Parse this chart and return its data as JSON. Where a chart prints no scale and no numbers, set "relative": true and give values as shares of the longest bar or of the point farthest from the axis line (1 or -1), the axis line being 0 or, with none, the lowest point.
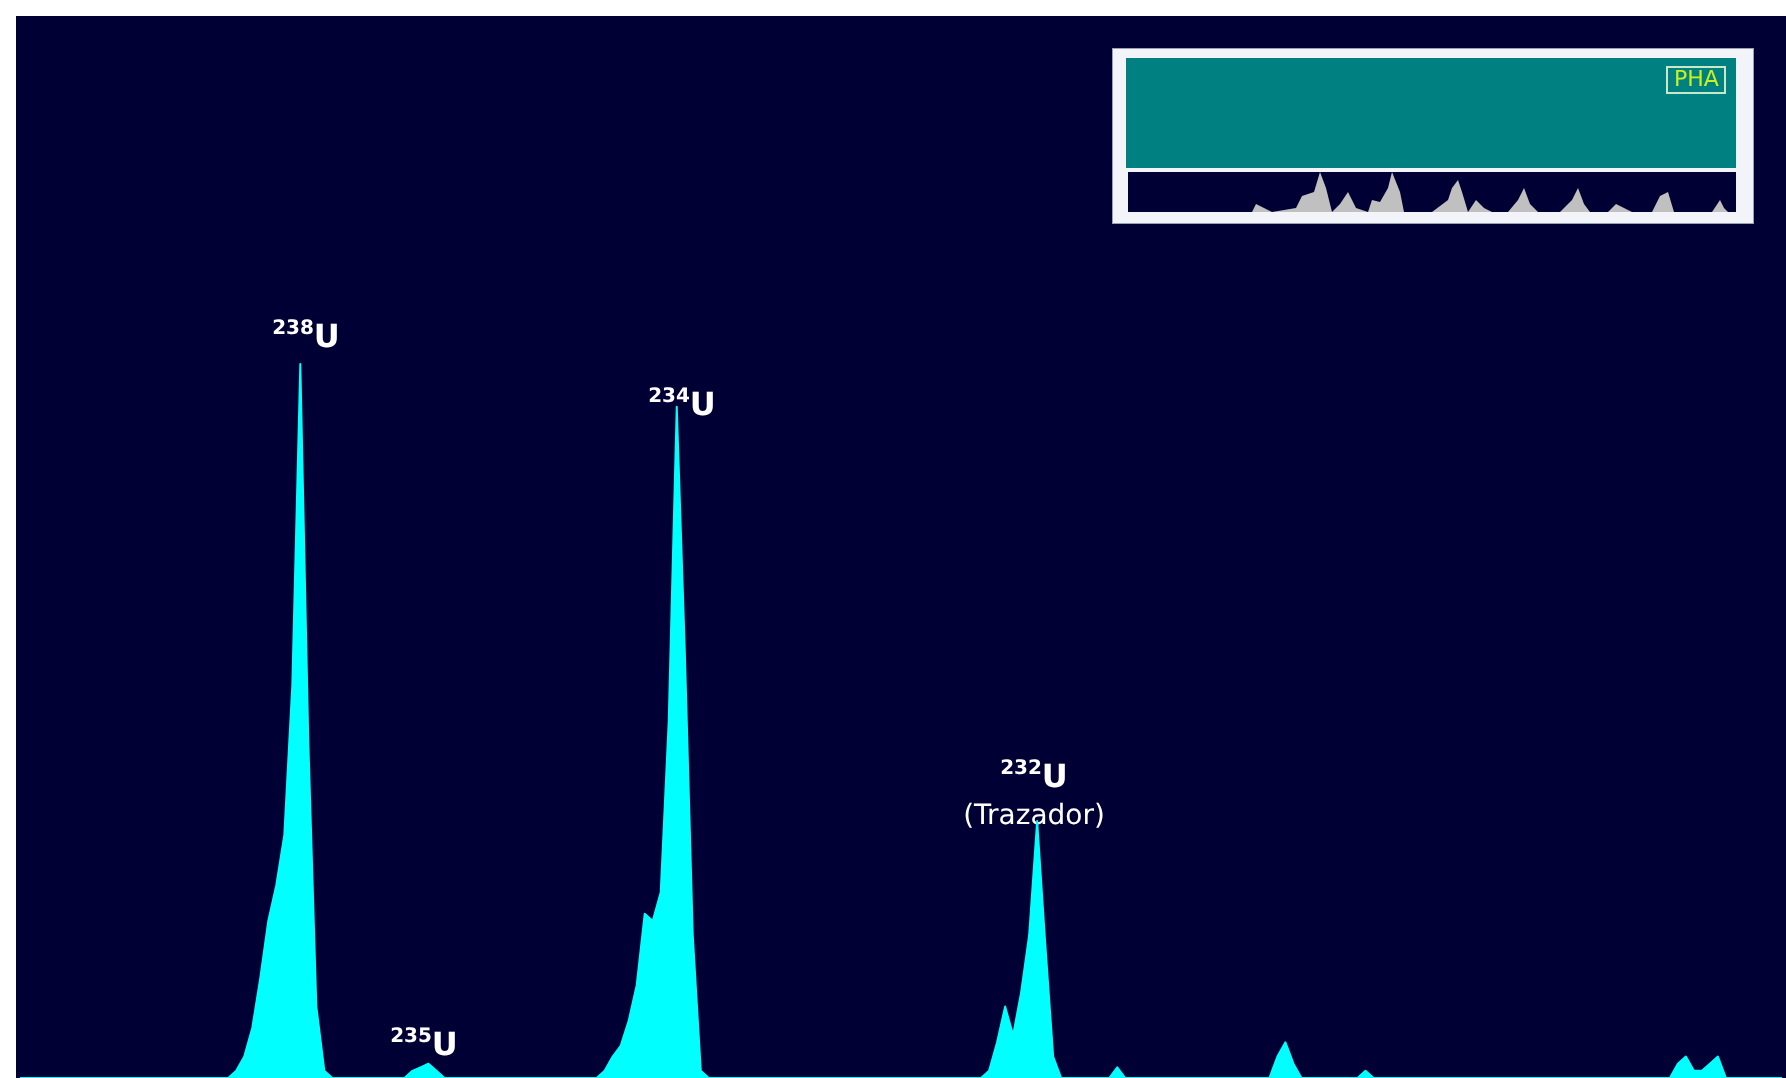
{
  "chart_data": {
    "type": "area",
    "relative": true,
    "color": "#00ffff",
    "categories": [
      null,
      null,
      null,
      null,
      null,
      null,
      null,
      null,
      null,
      null,
      null,
      null,
      null,
      null,
      null,
      null,
      null,
      null,
      null,
      null,
      null,
      null,
      null,
      null,
      null,
      null,
      null,
      null,
      null,
      null,
      null,
      null,
      null,
      null,
      null,
      null,
      null,
      null,
      null,
      null,
      null,
      null,
      null,
      null,
      null,
      null,
      null,
      null,
      null,
      null,
      null,
      null,
      null,
      null,
      null,
      null,
      null,
      null,
      null,
      null,
      null,
      null,
      null,
      null,
      null,
      null,
      null,
      null,
      null,
      null,
      null,
      null,
      null,
      null,
      null,
      null,
      null,
      null,
      null,
      null,
      null,
      null,
      null,
      null,
      null,
      null,
      null,
      null,
      null,
      null,
      null,
      null,
      null,
      null,
      null,
      null,
      null,
      null,
      null,
      null,
      null,
      null,
      null,
      null,
      null,
      null,
      null,
      null,
      null,
      null,
      null,
      null,
      null,
      null,
      null,
      null,
      null,
      null,
      null,
      null,
      null,
      null,
      null,
      null,
      null,
      null,
      null,
      null,
      null,
      null,
      null,
      null,
      null,
      null,
      null,
      null,
      null,
      null,
      null,
      null,
      null,
      null,
      null,
      null,
      null,
      null,
      null,
      null,
      null,
      null,
      null,
      null,
      null,
      null,
      null,
      null,
      null,
      null,
      null,
      null,
      null,
      null,
      null,
      null,
      null,
      null,
      null,
      null,
      null,
      null,
      null,
      null,
      null,
      null,
      null,
      null,
      null,
      null,
      null,
      null,
      null,
      null,
      null,
      null,
      null,
      null,
      null,
      null,
      null,
      null,
      null,
      null,
      null,
      null,
      null,
      null,
      null,
      null,
      null,
      null,
      null,
      null,
      null,
      null,
      null,
      null,
      null,
      null,
      null,
      null,
      null,
      null,
      null,
      null,
      null,
      null,
      null,
      null,
      null,
      null,
      null
    ],
    "values": [
      0,
      0,
      0,
      0,
      0,
      0,
      0,
      0,
      0,
      0,
      0,
      0,
      0,
      0,
      0,
      0,
      0,
      0,
      0,
      0,
      0,
      0,
      0,
      0,
      0,
      0,
      0,
      0.01,
      0.03,
      0.07,
      0.14,
      0.22,
      0.27,
      0.34,
      0.55,
      1,
      0.47,
      0.1,
      0.01,
      0,
      0,
      0,
      0,
      0,
      0,
      0,
      0,
      0,
      0,
      0.01,
      0.015,
      0.02,
      0.01,
      0,
      0,
      0,
      0,
      0,
      0,
      0,
      0,
      0,
      0,
      0,
      0,
      0,
      0,
      0,
      0,
      0,
      0,
      0,
      0,
      0.01,
      0.03,
      0.045,
      0.08,
      0.13,
      0.23,
      0.22,
      0.26,
      0.5,
      0.94,
      0.6,
      0.2,
      0.01,
      0,
      0,
      0,
      0,
      0,
      0,
      0,
      0,
      0,
      0,
      0,
      0,
      0,
      0,
      0,
      0,
      0,
      0,
      0,
      0,
      0,
      0,
      0,
      0,
      0,
      0,
      0,
      0,
      0,
      0,
      0,
      0,
      0,
      0,
      0,
      0.01,
      0.05,
      0.1,
      0.06,
      0.12,
      0.2,
      0.36,
      0.19,
      0.03,
      0,
      0,
      0,
      0,
      0,
      0,
      0,
      0.015,
      0,
      0,
      0,
      0,
      0,
      0,
      0,
      0,
      0,
      0,
      0,
      0,
      0,
      0,
      0,
      0,
      0,
      0,
      0,
      0.03,
      0.05,
      0.02,
      0,
      0,
      0,
      0,
      0,
      0,
      0,
      0,
      0.01,
      0,
      0,
      0,
      0,
      0,
      0,
      0,
      0,
      0,
      0,
      0,
      0,
      0,
      0,
      0,
      0,
      0,
      0,
      0,
      0,
      0,
      0,
      0,
      0,
      0,
      0,
      0,
      0,
      0,
      0,
      0,
      0,
      0,
      0,
      0,
      0,
      0,
      0,
      0.02,
      0.03,
      0.01,
      0.01,
      0.02,
      0.03,
      0,
      0,
      0,
      0,
      0,
      0,
      0,
      0
    ],
    "annotations": [
      "$^{238}$U",
      "$^{235}$U",
      "$^{234}$U",
      "$^{232}$U\n(Trazador)",
      "PHA"
    ]
  }
}
